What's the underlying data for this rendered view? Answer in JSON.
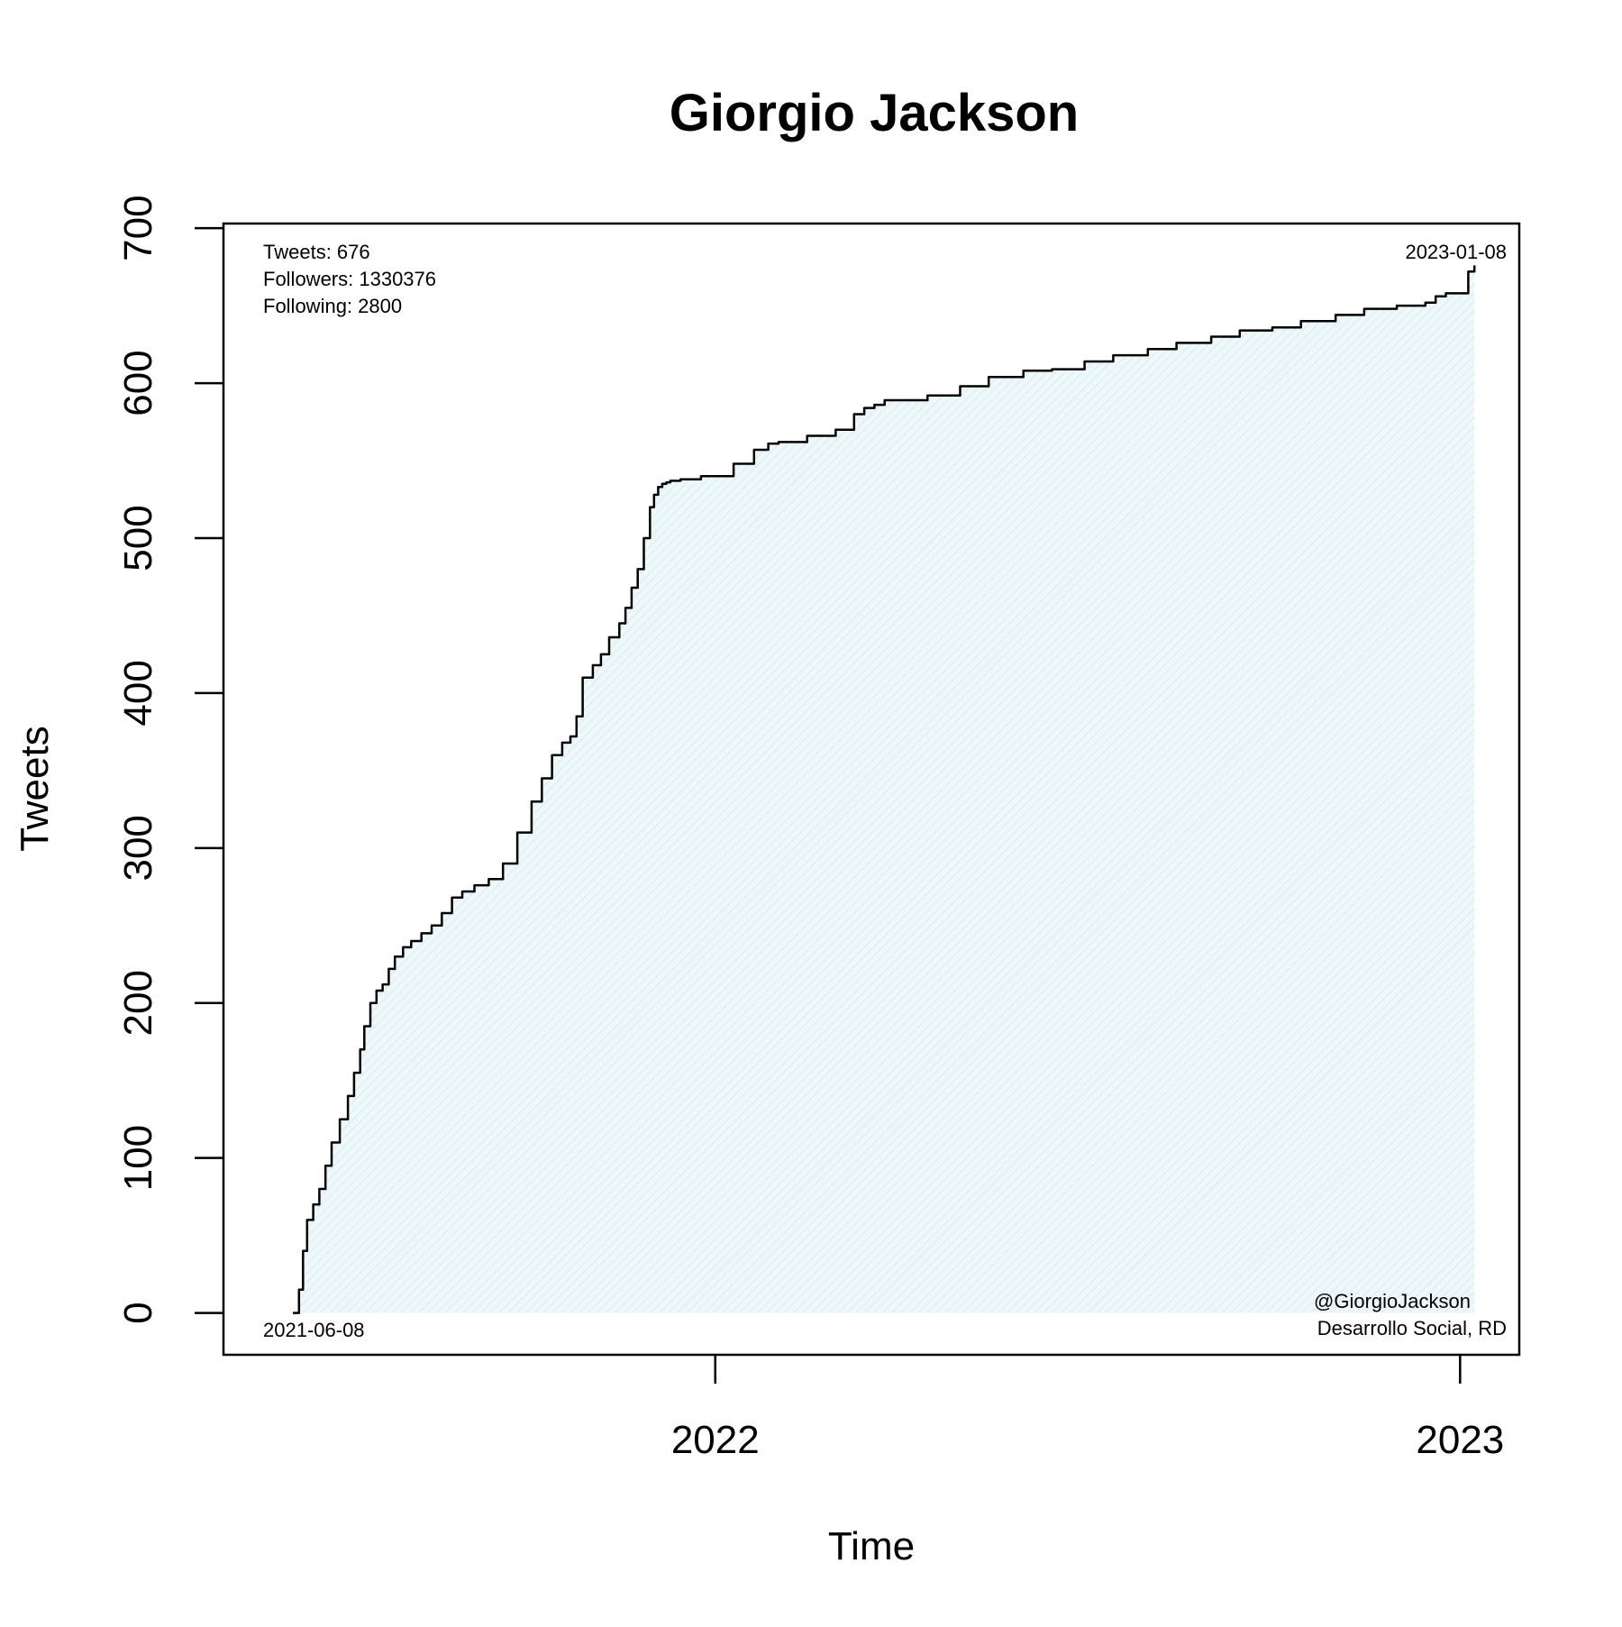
{
  "chart_data": {
    "type": "area",
    "title": "Giorgio Jackson",
    "xlabel": "Time",
    "ylabel": "Tweets",
    "x_ticks": [
      {
        "value": "2022-01-01",
        "label": "2022"
      },
      {
        "value": "2023-01-01",
        "label": "2023"
      }
    ],
    "y_ticks": [
      0,
      100,
      200,
      300,
      400,
      500,
      600,
      700
    ],
    "xlim": [
      "2021-05-05",
      "2023-01-30"
    ],
    "ylim": [
      -27,
      703
    ],
    "grid": false,
    "colors": {
      "line": "#000000",
      "fill": "#eef7f9",
      "hatch": "#d8ecf1"
    },
    "series": [
      {
        "x": [
          "2021-06-08",
          "2021-06-11",
          "2021-06-13",
          "2021-06-15",
          "2021-06-18",
          "2021-06-21",
          "2021-06-24",
          "2021-06-27",
          "2021-07-01",
          "2021-07-05",
          "2021-07-08",
          "2021-07-11",
          "2021-07-13",
          "2021-07-16",
          "2021-07-19",
          "2021-07-22",
          "2021-07-25",
          "2021-07-28",
          "2021-08-01",
          "2021-08-05",
          "2021-08-10",
          "2021-08-15",
          "2021-08-20",
          "2021-08-25",
          "2021-08-30",
          "2021-09-05",
          "2021-09-12",
          "2021-09-19",
          "2021-09-26",
          "2021-10-03",
          "2021-10-08",
          "2021-10-13",
          "2021-10-18",
          "2021-10-22",
          "2021-10-25",
          "2021-10-28",
          "2021-11-02",
          "2021-11-06",
          "2021-11-10",
          "2021-11-15",
          "2021-11-18",
          "2021-11-21",
          "2021-11-24",
          "2021-11-27",
          "2021-11-30",
          "2021-12-02",
          "2021-12-04",
          "2021-12-06",
          "2021-12-08",
          "2021-12-10",
          "2021-12-15",
          "2021-12-25",
          "2022-01-10",
          "2022-01-20",
          "2022-01-27",
          "2022-02-01",
          "2022-02-15",
          "2022-03-01",
          "2022-03-10",
          "2022-03-15",
          "2022-03-20",
          "2022-03-25",
          "2022-04-15",
          "2022-05-01",
          "2022-05-15",
          "2022-06-01",
          "2022-06-15",
          "2022-07-01",
          "2022-07-15",
          "2022-08-01",
          "2022-08-15",
          "2022-09-01",
          "2022-09-15",
          "2022-10-01",
          "2022-10-15",
          "2022-11-01",
          "2022-11-15",
          "2022-12-01",
          "2022-12-15",
          "2022-12-20",
          "2022-12-25",
          "2023-01-05",
          "2023-01-08"
        ],
        "y": [
          0,
          15,
          40,
          60,
          70,
          80,
          95,
          110,
          125,
          140,
          155,
          170,
          185,
          200,
          208,
          212,
          222,
          230,
          236,
          240,
          245,
          250,
          258,
          268,
          272,
          276,
          280,
          290,
          310,
          330,
          345,
          360,
          368,
          372,
          385,
          410,
          418,
          425,
          436,
          445,
          455,
          468,
          480,
          500,
          520,
          528,
          533,
          535,
          536,
          537,
          538,
          540,
          548,
          557,
          561,
          562,
          566,
          570,
          580,
          584,
          586,
          589,
          592,
          598,
          604,
          608,
          609,
          614,
          618,
          622,
          626,
          630,
          634,
          636,
          640,
          644,
          648,
          650,
          652,
          656,
          658,
          672,
          676
        ]
      }
    ]
  },
  "annotations": {
    "tweets": "Tweets: 676",
    "followers": "Followers: 1330376",
    "following": "Following: 2800",
    "start_date": "2021-06-08",
    "end_date": "2023-01-08",
    "handle": "@GiorgioJackson",
    "source": "Desarrollo Social, RD"
  }
}
